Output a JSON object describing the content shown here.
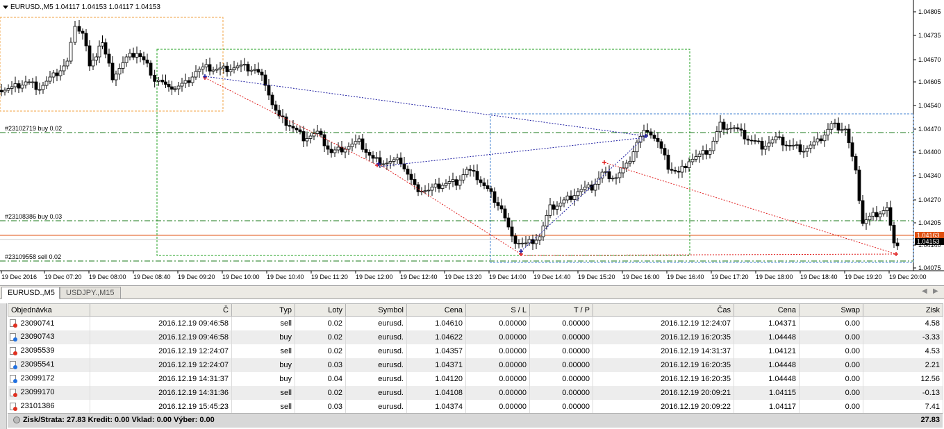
{
  "chart": {
    "header": "EURUSD.,M5  1.04117 1.04153 1.04117 1.04153",
    "price_labels": [
      "1.04805",
      "1.04735",
      "1.04670",
      "1.04605",
      "1.04540",
      "1.04470",
      "1.04400",
      "1.04340",
      "1.04270",
      "1.04205",
      "1.04140",
      "1.04075"
    ],
    "current_prices": [
      "1.04163",
      "1.04153"
    ],
    "time_labels": [
      "19 Dec 2016",
      "19 Dec 07:20",
      "19 Dec 08:00",
      "19 Dec 08:40",
      "19 Dec 09:20",
      "19 Dec 10:00",
      "19 Dec 10:40",
      "19 Dec 11:20",
      "19 Dec 12:00",
      "19 Dec 12:40",
      "19 Dec 13:20",
      "19 Dec 14:00",
      "19 Dec 14:40",
      "19 Dec 15:20",
      "19 Dec 16:00",
      "19 Dec 16:40",
      "19 Dec 17:20",
      "19 Dec 18:00",
      "19 Dec 18:40",
      "19 Dec 19:20",
      "19 Dec 20:00"
    ],
    "level_labels": [
      "#23102719 buy 0.02",
      "#23108386 buy 0.03",
      "#23109558 sell 0.02"
    ],
    "colors": {
      "bull": "#ffffff",
      "bear": "#000000",
      "level": "#1a7a1a",
      "trade_red": "#e02020",
      "trade_blue": "#1a1aa0",
      "box_orange": "#f0a040",
      "box_green": "#20a020",
      "box_blue": "#4080d0",
      "price_line": "#e05010"
    }
  },
  "tabs": [
    {
      "label": "EURUSD.,M5",
      "active": true
    },
    {
      "label": "USDJPY.,M15",
      "active": false
    }
  ],
  "table": {
    "headers": [
      "Objednávka",
      "Č",
      "Typ",
      "Loty",
      "Symbol",
      "Cena",
      "S / L",
      "T / P",
      "Čas",
      "Cena",
      "Swap",
      "Zisk"
    ],
    "rows": [
      {
        "order": "23090741",
        "time_open": "2016.12.19 09:46:58",
        "type": "sell",
        "lots": "0.02",
        "symbol": "eurusd.",
        "price_open": "1.04610",
        "sl": "0.00000",
        "tp": "0.00000",
        "time_close": "2016.12.19 12:24:07",
        "price_close": "1.04371",
        "swap": "0.00",
        "profit": "4.58"
      },
      {
        "order": "23090743",
        "time_open": "2016.12.19 09:46:58",
        "type": "buy",
        "lots": "0.02",
        "symbol": "eurusd.",
        "price_open": "1.04622",
        "sl": "0.00000",
        "tp": "0.00000",
        "time_close": "2016.12.19 16:20:35",
        "price_close": "1.04448",
        "swap": "0.00",
        "profit": "-3.33"
      },
      {
        "order": "23095539",
        "time_open": "2016.12.19 12:24:07",
        "type": "sell",
        "lots": "0.02",
        "symbol": "eurusd.",
        "price_open": "1.04357",
        "sl": "0.00000",
        "tp": "0.00000",
        "time_close": "2016.12.19 14:31:37",
        "price_close": "1.04121",
        "swap": "0.00",
        "profit": "4.53"
      },
      {
        "order": "23095541",
        "time_open": "2016.12.19 12:24:07",
        "type": "buy",
        "lots": "0.03",
        "symbol": "eurusd.",
        "price_open": "1.04371",
        "sl": "0.00000",
        "tp": "0.00000",
        "time_close": "2016.12.19 16:20:35",
        "price_close": "1.04448",
        "swap": "0.00",
        "profit": "2.21"
      },
      {
        "order": "23099172",
        "time_open": "2016.12.19 14:31:37",
        "type": "buy",
        "lots": "0.04",
        "symbol": "eurusd.",
        "price_open": "1.04120",
        "sl": "0.00000",
        "tp": "0.00000",
        "time_close": "2016.12.19 16:20:35",
        "price_close": "1.04448",
        "swap": "0.00",
        "profit": "12.56"
      },
      {
        "order": "23099170",
        "time_open": "2016.12.19 14:31:36",
        "type": "sell",
        "lots": "0.02",
        "symbol": "eurusd.",
        "price_open": "1.04108",
        "sl": "0.00000",
        "tp": "0.00000",
        "time_close": "2016.12.19 20:09:21",
        "price_close": "1.04115",
        "swap": "0.00",
        "profit": "-0.13"
      },
      {
        "order": "23101386",
        "time_open": "2016.12.19 15:45:23",
        "type": "sell",
        "lots": "0.03",
        "symbol": "eurusd.",
        "price_open": "1.04374",
        "sl": "0.00000",
        "tp": "0.00000",
        "time_close": "2016.12.19 20:09:22",
        "price_close": "1.04117",
        "swap": "0.00",
        "profit": "7.41"
      }
    ]
  },
  "summary": {
    "text": "Zisk/Strata: 27.83  Kredit: 0.00  Vklad: 0.00  Výber: 0.00",
    "total": "27.83"
  }
}
